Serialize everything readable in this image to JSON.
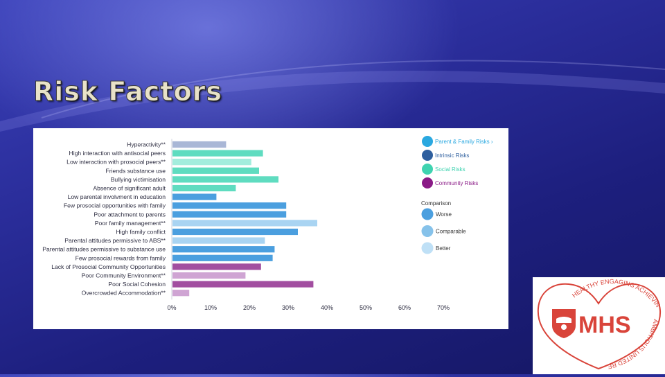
{
  "slide": {
    "title": "Risk Factors"
  },
  "colors": {
    "parent_family": "#2aa8e0",
    "intrinsic": "#2e5f9e",
    "social": "#3fd3b0",
    "community": "#8a1a86",
    "worse": "#4b9fdf",
    "comparable": "#86c2ea",
    "better": "#bfe0f6"
  },
  "chart_data": {
    "type": "bar",
    "orientation": "horizontal",
    "categories": [
      "Hyperactivity**",
      "High interaction with antisocial peers",
      "Low interaction with prosocial peers**",
      "Friends substance use",
      "Bullying victimisation",
      "Absence of significant adult",
      "Low parental involvment in education",
      "Few prosocial opportunities with family",
      "Poor attachment to parents",
      "Poor family management**",
      "High family conflict",
      "Parental attitudes permissive to ABS**",
      "Parental attitudes permissive to substance use",
      "Few prosocial rewards from family",
      "Lack of Prosocial Community Opportunities",
      "Poor Community Environment**",
      "Poor Social Cohesion",
      "Overcrowded Accommodation**"
    ],
    "values": [
      14,
      23.5,
      20.5,
      22.5,
      27.5,
      16.5,
      11.5,
      29.5,
      29.5,
      37.5,
      32.5,
      24,
      26.5,
      26,
      23,
      19,
      36.5,
      4.5
    ],
    "bar_colors": [
      "#a9b7d6",
      "#5fdcc0",
      "#a3eddd",
      "#5fdcc0",
      "#5fdcc0",
      "#5fdcc0",
      "#4b9fdf",
      "#4b9fdf",
      "#4b9fdf",
      "#a9d4f2",
      "#4b9fdf",
      "#a9d4f2",
      "#4b9fdf",
      "#4b9fdf",
      "#a24ea0",
      "#cfa4d3",
      "#a24ea0",
      "#cfa4d3"
    ],
    "xlim": [
      0,
      70
    ],
    "xticks": [
      "0%",
      "10%",
      "20%",
      "30%",
      "40%",
      "50%",
      "60%",
      "70%"
    ],
    "legend": {
      "placement": "top-right",
      "groups": [
        {
          "label": "Parent & Family Risks",
          "suffix": "›",
          "color": "#2aa8e0"
        },
        {
          "label": "Intrinsic Risks",
          "color": "#2e5f9e"
        },
        {
          "label": "Social Risks",
          "color": "#3fd3b0"
        },
        {
          "label": "Community Risks",
          "color": "#8a1a86"
        }
      ],
      "comparison_title": "Comparison",
      "comparison": [
        {
          "label": "Worse",
          "color": "#4b9fdf"
        },
        {
          "label": "Comparable",
          "color": "#86c2ea"
        },
        {
          "label": "Better",
          "color": "#bfe0f6"
        }
      ]
    }
  },
  "logo": {
    "letters": "MHS",
    "arc_top": "HEALTHY ENGAGING ACHIEVING",
    "arc_bottom": "AMBITIOUS UNITED RESPECTFUL",
    "color": "#d9443a"
  }
}
